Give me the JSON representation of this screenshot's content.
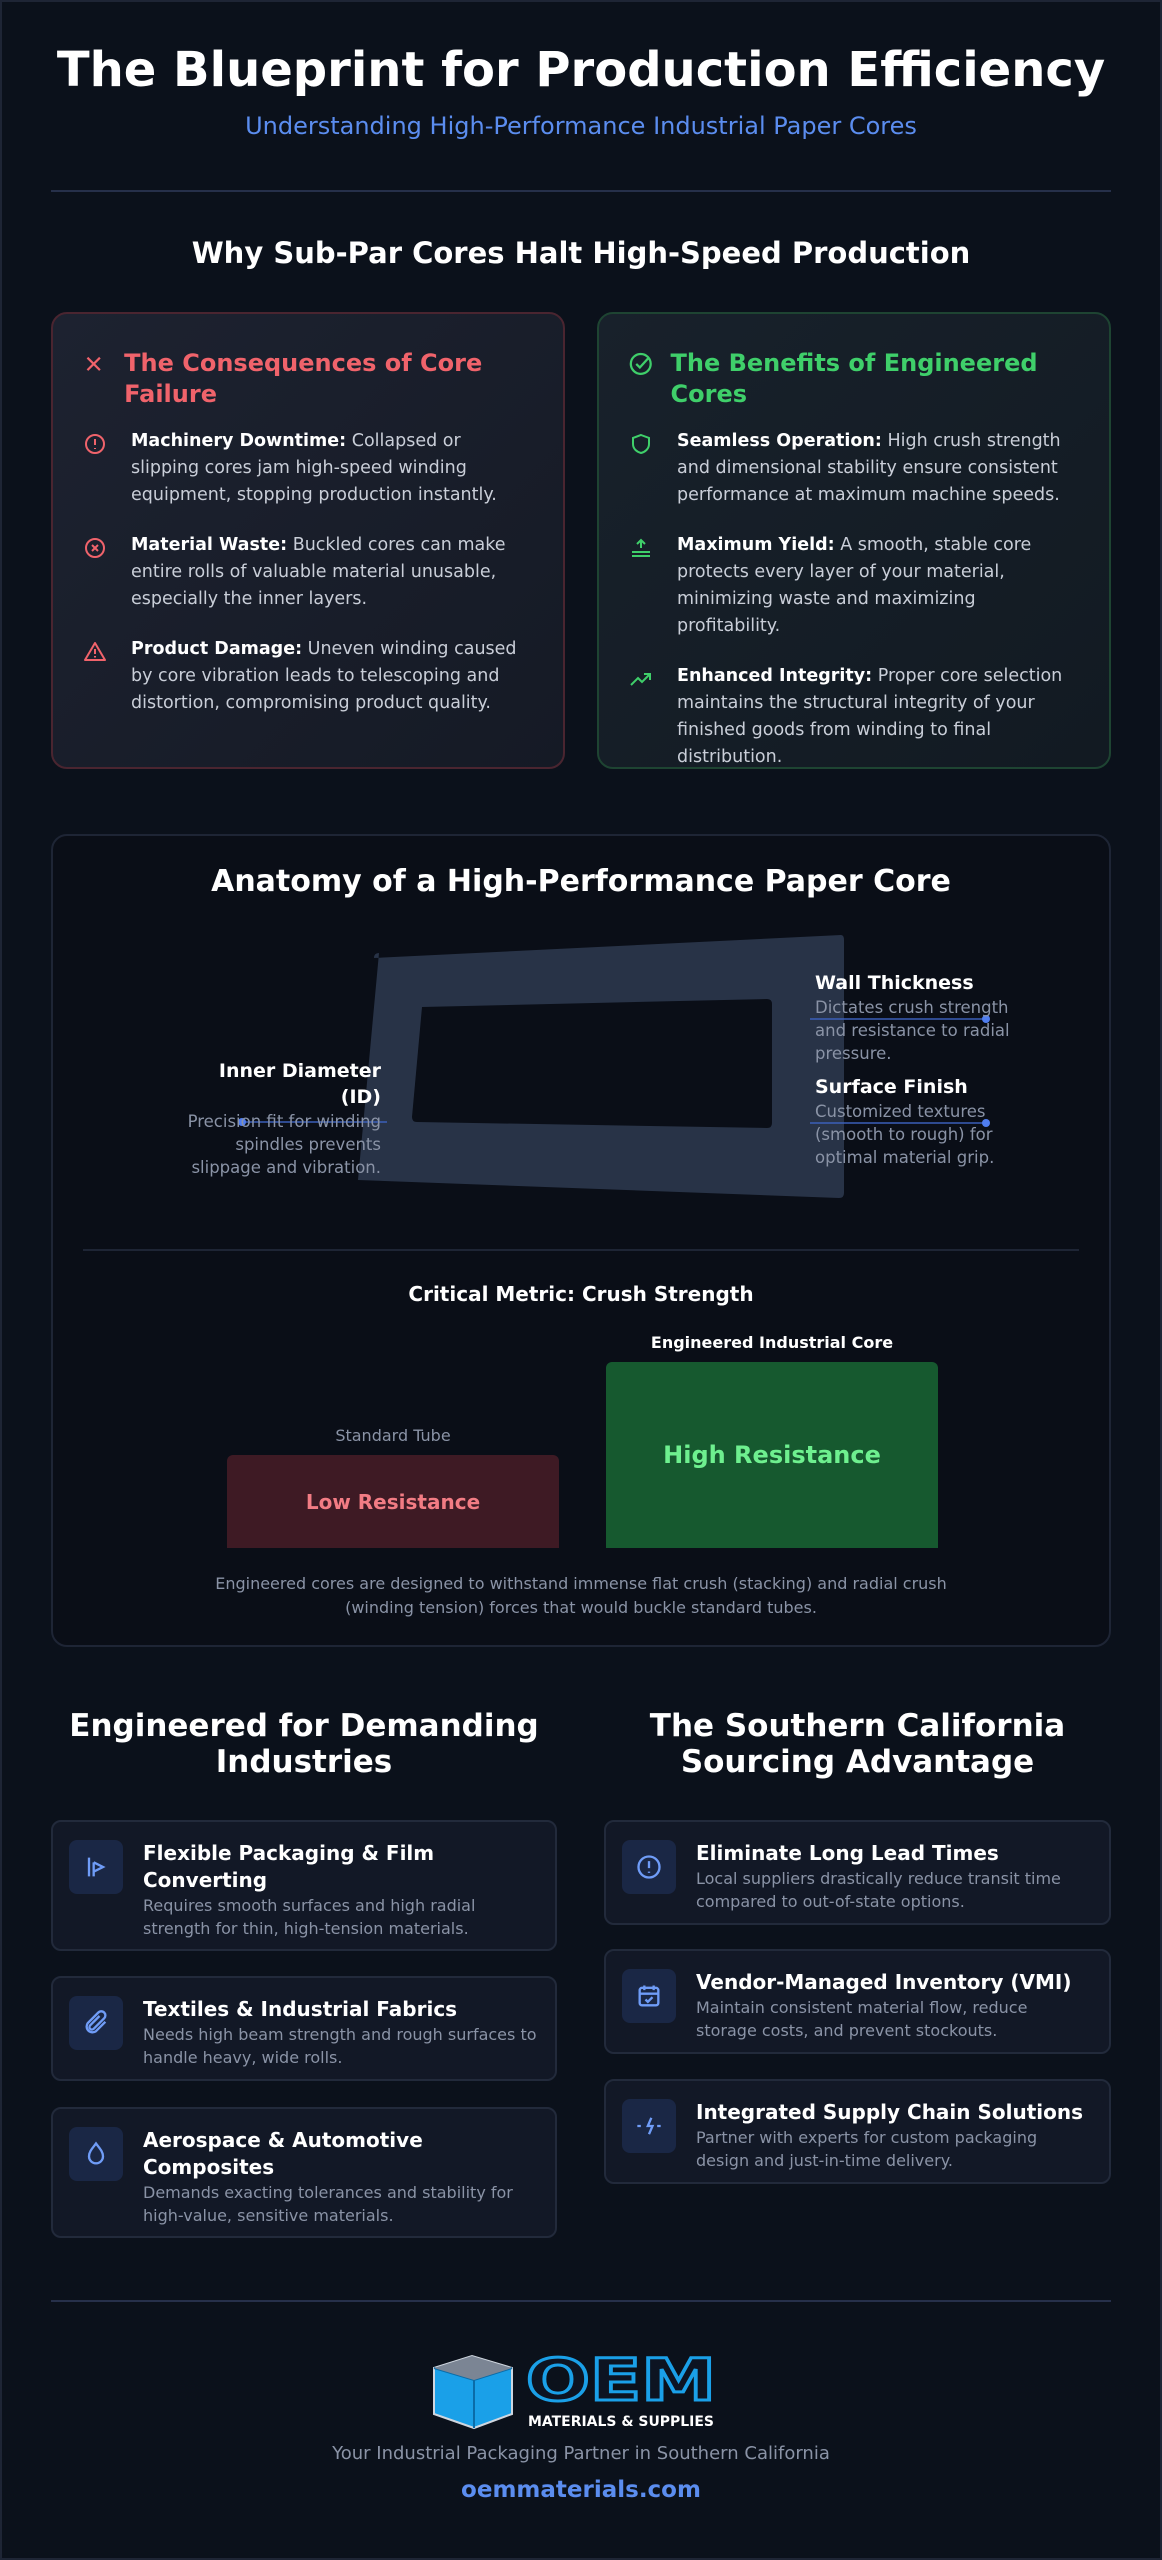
{
  "header": {
    "title": "The Blueprint for Production Efficiency",
    "subtitle": "Understanding High-Performance Industrial Paper Cores"
  },
  "problem": {
    "heading": "Why Sub-Par Cores Halt High-Speed Production",
    "consequences": {
      "title": "The Consequences of Core Failure",
      "items": [
        {
          "label": "Machinery Downtime:",
          "text": "Collapsed or slipping cores jam high-speed winding equipment, stopping production instantly."
        },
        {
          "label": "Material Waste:",
          "text": "Buckled cores can make entire rolls of valuable material unusable, especially the inner layers."
        },
        {
          "label": "Product Damage:",
          "text": "Uneven winding caused by core vibration leads to telescoping and distortion, compromising product quality."
        }
      ]
    },
    "benefits": {
      "title": "The Benefits of Engineered Cores",
      "items": [
        {
          "label": "Seamless Operation:",
          "text": "High crush strength and dimensional stability ensure consistent performance at maximum machine speeds."
        },
        {
          "label": "Maximum Yield:",
          "text": "A smooth, stable core protects every layer of your material, minimizing waste and maximizing profitability."
        },
        {
          "label": "Enhanced Integrity:",
          "text": "Proper core selection maintains the structural integrity of your finished goods from winding to final distribution."
        }
      ]
    }
  },
  "anatomy": {
    "heading": "Anatomy of a High-Performance Paper Core",
    "inner_diameter": {
      "title": "Inner Diameter (ID)",
      "text": "Precision fit for winding spindles prevents slippage and vibration."
    },
    "wall_thickness": {
      "title": "Wall Thickness",
      "text": "Dictates crush strength and resistance to radial pressure."
    },
    "surface_finish": {
      "title": "Surface Finish",
      "text": "Customized textures (smooth to rough) for optimal material grip."
    },
    "metric": {
      "title": "Critical Metric: Crush Strength",
      "standard_label": "Standard Tube",
      "standard_bar": "Low Resistance",
      "engineered_label": "Engineered Industrial Core",
      "engineered_bar": "High Resistance",
      "caption": "Engineered cores are designed to withstand immense flat crush (stacking) and radial crush (winding tension) forces that would buckle standard tubes."
    }
  },
  "industries": {
    "heading": "Engineered for Demanding Industries",
    "items": [
      {
        "title": "Flexible Packaging & Film Converting",
        "text": "Requires smooth surfaces and high radial strength for thin, high-tension materials."
      },
      {
        "title": "Textiles & Industrial Fabrics",
        "text": "Needs high beam strength and rough surfaces to handle heavy, wide rolls."
      },
      {
        "title": "Aerospace & Automotive Composites",
        "text": "Demands exacting tolerances and stability for high-value, sensitive materials."
      }
    ]
  },
  "sourcing": {
    "heading": "The Southern California Sourcing Advantage",
    "items": [
      {
        "title": "Eliminate Long Lead Times",
        "text": "Local suppliers drastically reduce transit time compared to out-of-state options."
      },
      {
        "title": "Vendor-Managed Inventory (VMI)",
        "text": "Maintain consistent material flow, reduce storage costs, and prevent stockouts."
      },
      {
        "title": "Integrated Supply Chain Solutions",
        "text": "Partner with experts for custom packaging design and just-in-time delivery."
      }
    ]
  },
  "footer": {
    "logo_name": "OEM",
    "logo_subtitle": "MATERIALS & SUPPLIES",
    "tagline": "Your Industrial Packaging Partner in Southern California",
    "url": "oemmaterials.com"
  }
}
